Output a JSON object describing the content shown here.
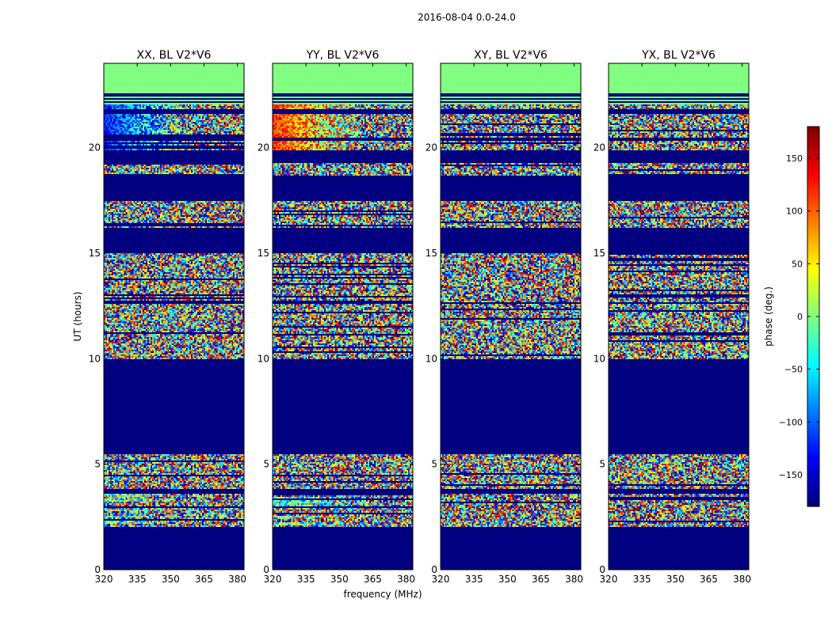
{
  "figure_title": "2016-08-04 0.0-24.0",
  "ylabel": "UT (hours)",
  "xlabel": "frequency (MHz)",
  "colors": {
    "background_empty": "#000080",
    "flagged": "#80ff80",
    "axis": "#000000"
  },
  "chart_data": [
    {
      "type": "heatmap",
      "title": "XX, BL V2*V6",
      "xlim": [
        320,
        383
      ],
      "ylim": [
        0,
        24
      ],
      "x_ticks": [
        320,
        335,
        350,
        365,
        380
      ],
      "y_ticks": [
        0,
        5,
        10,
        15,
        20
      ],
      "variant": 0
    },
    {
      "type": "heatmap",
      "title": "YY, BL V2*V6",
      "xlim": [
        320,
        383
      ],
      "ylim": [
        0,
        24
      ],
      "x_ticks": [
        320,
        335,
        350,
        365,
        380
      ],
      "y_ticks": [
        0,
        5,
        10,
        15,
        20
      ],
      "variant": 1
    },
    {
      "type": "heatmap",
      "title": "XY, BL V2*V6",
      "xlim": [
        320,
        383
      ],
      "ylim": [
        0,
        24
      ],
      "x_ticks": [
        320,
        335,
        350,
        365,
        380
      ],
      "y_ticks": [
        0,
        5,
        10,
        15,
        20
      ],
      "variant": 2
    },
    {
      "type": "heatmap",
      "title": "YX, BL V2*V6",
      "xlim": [
        320,
        383
      ],
      "ylim": [
        0,
        24
      ],
      "x_ticks": [
        320,
        335,
        350,
        365,
        380
      ],
      "y_ticks": [
        0,
        5,
        10,
        15,
        20
      ],
      "variant": 3
    }
  ],
  "colorbar": {
    "label": "phase (deg.)",
    "range": [
      -180,
      180
    ],
    "ticks": [
      150,
      100,
      50,
      0,
      -50,
      -100,
      -150
    ],
    "tick_labels": [
      "150",
      "100",
      "50",
      "0",
      "−50",
      "−100",
      "−150"
    ],
    "colormap": "jet"
  },
  "flagged_band_hours": [
    22.6,
    24.0
  ],
  "empty_band_hours": [
    [
      0,
      2.0
    ],
    [
      5.5,
      9.9
    ],
    [
      15.0,
      16.2
    ]
  ]
}
